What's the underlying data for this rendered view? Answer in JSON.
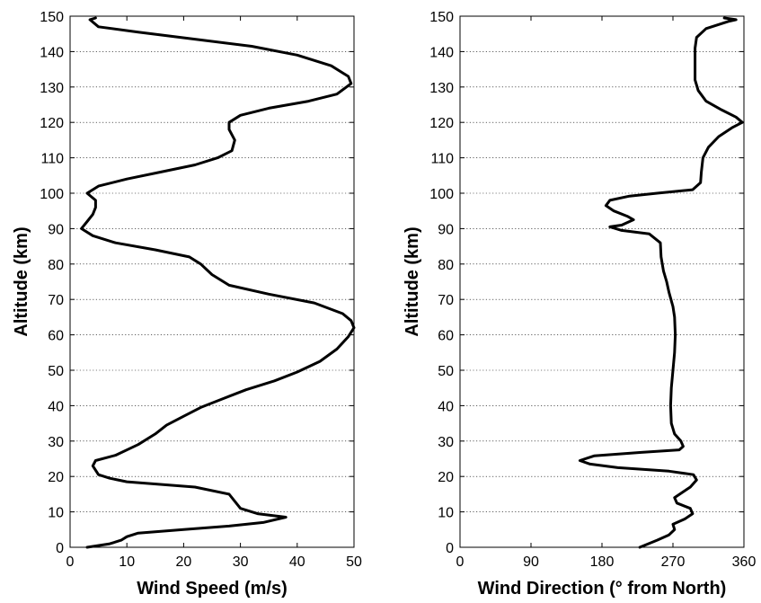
{
  "chart_data": [
    {
      "type": "line",
      "xlabel": "Wind Speed (m/s)",
      "ylabel": "Altitude (km)",
      "xlim": [
        0,
        50
      ],
      "ylim": [
        0,
        150
      ],
      "xticks": [
        "0",
        "10",
        "20",
        "30",
        "40",
        "50"
      ],
      "yticks": [
        "0",
        "10",
        "20",
        "30",
        "40",
        "50",
        "60",
        "70",
        "80",
        "90",
        "100",
        "110",
        "120",
        "130",
        "140",
        "150"
      ],
      "grid": "horizontal dotted",
      "series": [
        {
          "points": [
            [
              3,
              0
            ],
            [
              7,
              1
            ],
            [
              9,
              2
            ],
            [
              10,
              3
            ],
            [
              12,
              4
            ],
            [
              20,
              5
            ],
            [
              28,
              6
            ],
            [
              34,
              7
            ],
            [
              38,
              8.5
            ],
            [
              33,
              9.5
            ],
            [
              30,
              11
            ],
            [
              29,
              13
            ],
            [
              28,
              15
            ],
            [
              22,
              17
            ],
            [
              10,
              18.5
            ],
            [
              7,
              19.5
            ],
            [
              5,
              20.5
            ],
            [
              4,
              23
            ],
            [
              4.5,
              24.5
            ],
            [
              8,
              26
            ],
            [
              12,
              29
            ],
            [
              15,
              32
            ],
            [
              17,
              34.5
            ],
            [
              20,
              37
            ],
            [
              23,
              39.5
            ],
            [
              27,
              42
            ],
            [
              31,
              44.5
            ],
            [
              36,
              47
            ],
            [
              40,
              49.5
            ],
            [
              44,
              52.5
            ],
            [
              47,
              56
            ],
            [
              49,
              59.5
            ],
            [
              50,
              62
            ],
            [
              49.5,
              64
            ],
            [
              48,
              66
            ],
            [
              43,
              69
            ],
            [
              35,
              71.5
            ],
            [
              28,
              74
            ],
            [
              25,
              77
            ],
            [
              23,
              80
            ],
            [
              21,
              82
            ],
            [
              15,
              84
            ],
            [
              8,
              86
            ],
            [
              4,
              88
            ],
            [
              2,
              90
            ],
            [
              3,
              92
            ],
            [
              4,
              94
            ],
            [
              4.5,
              96
            ],
            [
              4.5,
              98
            ],
            [
              3,
              100
            ],
            [
              5,
              102
            ],
            [
              10,
              104
            ],
            [
              16,
              106
            ],
            [
              22,
              108
            ],
            [
              26,
              110
            ],
            [
              28.5,
              112
            ],
            [
              29,
              115
            ],
            [
              28,
              118
            ],
            [
              28,
              120
            ],
            [
              30,
              122
            ],
            [
              35,
              124
            ],
            [
              42,
              126
            ],
            [
              47,
              128
            ],
            [
              49.5,
              131
            ],
            [
              49,
              133
            ],
            [
              46,
              136
            ],
            [
              40,
              139
            ],
            [
              32,
              141.5
            ],
            [
              22,
              143.5
            ],
            [
              12,
              145.5
            ],
            [
              5,
              147
            ],
            [
              3.5,
              149
            ],
            [
              4.5,
              149.5
            ]
          ]
        }
      ]
    },
    {
      "type": "line",
      "xlabel": "Wind Direction (° from North)",
      "ylabel": "Altitude (km)",
      "xlim": [
        0,
        360
      ],
      "ylim": [
        0,
        150
      ],
      "xticks": [
        "0",
        "90",
        "180",
        "270",
        "360"
      ],
      "yticks": [
        "0",
        "10",
        "20",
        "30",
        "40",
        "50",
        "60",
        "70",
        "80",
        "90",
        "100",
        "110",
        "120",
        "130",
        "140",
        "150"
      ],
      "grid": "horizontal dotted",
      "series": [
        {
          "points": [
            [
              228,
              0
            ],
            [
              250,
              2
            ],
            [
              265,
              3.5
            ],
            [
              272,
              5
            ],
            [
              270,
              6.5
            ],
            [
              285,
              8
            ],
            [
              295,
              9.5
            ],
            [
              292,
              11
            ],
            [
              275,
              12.5
            ],
            [
              272,
              14
            ],
            [
              282,
              15.5
            ],
            [
              292,
              17
            ],
            [
              300,
              19
            ],
            [
              296,
              20.5
            ],
            [
              265,
              21.5
            ],
            [
              200,
              22.5
            ],
            [
              165,
              23.5
            ],
            [
              152,
              24.5
            ],
            [
              170,
              25.8
            ],
            [
              230,
              26.8
            ],
            [
              278,
              27.5
            ],
            [
              283,
              28.5
            ],
            [
              280,
              30
            ],
            [
              272,
              32
            ],
            [
              268,
              35
            ],
            [
              267,
              40
            ],
            [
              268,
              45
            ],
            [
              270,
              50
            ],
            [
              272,
              55
            ],
            [
              273,
              60
            ],
            [
              272,
              65
            ],
            [
              270,
              68
            ],
            [
              265,
              72
            ],
            [
              262,
              75
            ],
            [
              258,
              78
            ],
            [
              255,
              82
            ],
            [
              254,
              86
            ],
            [
              240,
              88.5
            ],
            [
              205,
              89.5
            ],
            [
              190,
              90.5
            ],
            [
              205,
              91
            ],
            [
              220,
              92.5
            ],
            [
              212,
              93.5
            ],
            [
              195,
              95
            ],
            [
              185,
              96.5
            ],
            [
              190,
              98
            ],
            [
              215,
              99.2
            ],
            [
              250,
              100
            ],
            [
              295,
              101
            ],
            [
              305,
              103
            ],
            [
              306,
              106
            ],
            [
              308,
              110
            ],
            [
              315,
              113
            ],
            [
              328,
              116
            ],
            [
              345,
              118.5
            ],
            [
              358,
              120
            ],
            [
              350,
              121.5
            ],
            [
              332,
              123.5
            ],
            [
              312,
              126
            ],
            [
              302,
              129
            ],
            [
              298,
              132
            ],
            [
              298,
              137
            ],
            [
              298,
              141
            ],
            [
              300,
              144
            ],
            [
              312,
              146.5
            ],
            [
              340,
              148.5
            ],
            [
              350,
              149
            ],
            [
              335,
              149.5
            ]
          ]
        }
      ]
    }
  ]
}
